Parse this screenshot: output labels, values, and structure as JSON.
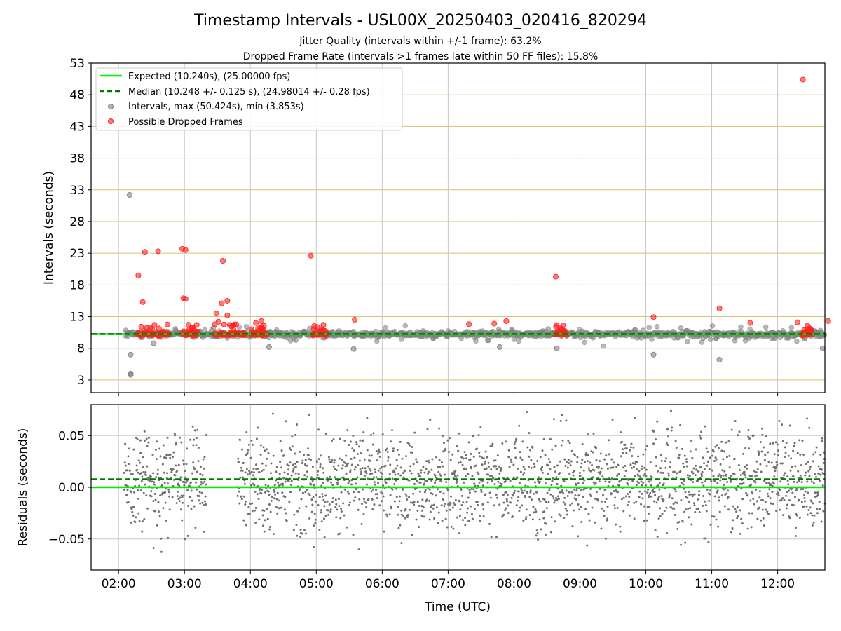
{
  "figure": {
    "title": "Timestamp Intervals - USL00X_20250403_020416_820294",
    "subtitle_1": "Jitter Quality (intervals within +/-1 frame): 63.2%",
    "subtitle_2": "Dropped Frame Rate (intervals >1 frames late within 50 FF files): 15.8%"
  },
  "colors": {
    "expected": "#00ee00",
    "median": "#007a00",
    "intervals": "#808080",
    "dropped": "#ff2020",
    "hgrid_top": "#d8c070",
    "vgrid": "#c8c8c8",
    "residual_points": "#707070"
  },
  "chart_data": [
    {
      "type": "scatter",
      "ylabel": "Intervals (seconds)",
      "ylim": [
        1,
        53
      ],
      "yticks": [
        "3",
        "8",
        "13",
        "18",
        "23",
        "28",
        "33",
        "38",
        "43",
        "48",
        "53"
      ],
      "xlim": [
        "01:35",
        "12:43"
      ],
      "xtick_labels": [
        "02:00",
        "03:00",
        "04:00",
        "05:00",
        "06:00",
        "07:00",
        "08:00",
        "09:00",
        "10:00",
        "11:00",
        "12:00"
      ],
      "grid": "horizontal gold lines, vertical gray lines",
      "legend_position": "top-left",
      "legend": [
        "Expected (10.240s), (25.00000 fps)",
        "Median (10.248 +/- 0.125 s), (24.98014 +/- 0.28 fps)",
        "Intervals, max (50.424s), min (3.853s)",
        "Possible Dropped Frames"
      ],
      "lines": [
        {
          "label": "Expected",
          "y": 10.24,
          "style": "solid"
        },
        {
          "label": "Median",
          "y": 10.248,
          "style": "dashed"
        }
      ],
      "interval_outliers": [
        {
          "x": "02:10",
          "y": 32.2
        },
        {
          "x": "02:11",
          "y": 7.0
        },
        {
          "x": "02:11",
          "y": 4.0
        },
        {
          "x": "02:11",
          "y": 3.8
        },
        {
          "x": "10:07",
          "y": 7.0
        },
        {
          "x": "11:07",
          "y": 6.2
        },
        {
          "x": "12:41",
          "y": 8.0
        },
        {
          "x": "05:34",
          "y": 7.9
        },
        {
          "x": "08:39",
          "y": 8.0
        },
        {
          "x": "02:32",
          "y": 8.8
        },
        {
          "x": "04:17",
          "y": 8.2
        },
        {
          "x": "07:47",
          "y": 8.2
        }
      ],
      "dropped_frames": [
        {
          "x": "02:18",
          "y": 19.5
        },
        {
          "x": "02:22",
          "y": 15.3
        },
        {
          "x": "02:24",
          "y": 23.2
        },
        {
          "x": "02:36",
          "y": 23.3
        },
        {
          "x": "02:58",
          "y": 23.7
        },
        {
          "x": "03:01",
          "y": 23.5
        },
        {
          "x": "02:59",
          "y": 15.9
        },
        {
          "x": "03:01",
          "y": 15.8
        },
        {
          "x": "03:35",
          "y": 21.8
        },
        {
          "x": "03:34",
          "y": 15.1
        },
        {
          "x": "03:39",
          "y": 15.5
        },
        {
          "x": "03:39",
          "y": 13.2
        },
        {
          "x": "03:29",
          "y": 13.5
        },
        {
          "x": "03:31",
          "y": 12.2
        },
        {
          "x": "04:55",
          "y": 22.6
        },
        {
          "x": "05:35",
          "y": 12.5
        },
        {
          "x": "08:38",
          "y": 19.3
        },
        {
          "x": "10:07",
          "y": 12.9
        },
        {
          "x": "11:07",
          "y": 14.3
        },
        {
          "x": "11:35",
          "y": 12.0
        },
        {
          "x": "12:23",
          "y": 50.4
        },
        {
          "x": "12:46",
          "y": 12.3
        },
        {
          "x": "04:10",
          "y": 12.3
        },
        {
          "x": "04:05",
          "y": 12.0
        },
        {
          "x": "07:19",
          "y": 11.8
        },
        {
          "x": "07:42",
          "y": 11.9
        },
        {
          "x": "07:53",
          "y": 12.3
        },
        {
          "x": "12:18",
          "y": 12.1
        }
      ],
      "dropped_clusters": [
        {
          "from": "02:17",
          "to": "02:46"
        },
        {
          "from": "02:58",
          "to": "03:12"
        },
        {
          "from": "03:27",
          "to": "03:55"
        },
        {
          "from": "04:01",
          "to": "04:15"
        },
        {
          "from": "04:57",
          "to": "05:10"
        },
        {
          "from": "08:37",
          "to": "08:48"
        },
        {
          "from": "12:22",
          "to": "12:31"
        }
      ]
    },
    {
      "type": "scatter",
      "xlabel": "Time (UTC)",
      "ylabel": "Residuals (seconds)",
      "ylim": [
        -0.08,
        0.08
      ],
      "yticks": [
        "−0.05",
        "0.00",
        "0.05"
      ],
      "xtick_labels": [
        "02:00",
        "03:00",
        "04:00",
        "05:00",
        "06:00",
        "07:00",
        "08:00",
        "09:00",
        "10:00",
        "11:00",
        "12:00"
      ],
      "lines": [
        {
          "label": "Expected",
          "y": 0.0,
          "style": "solid"
        },
        {
          "label": "Median",
          "y": 0.008,
          "style": "dashed"
        }
      ],
      "gaps": [
        {
          "from": "03:20",
          "to": "03:48"
        }
      ]
    }
  ]
}
